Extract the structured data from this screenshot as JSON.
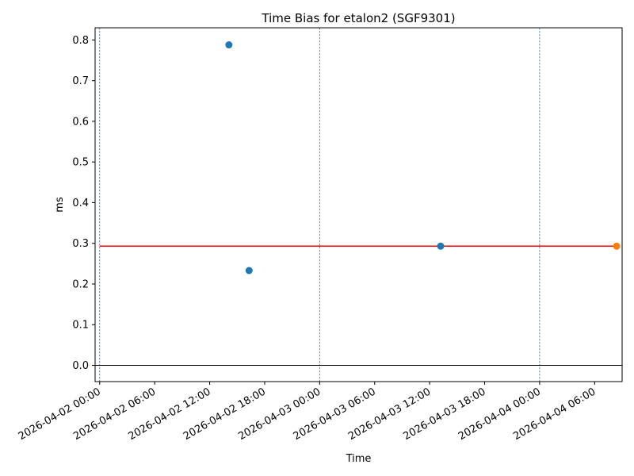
{
  "chart_data": {
    "type": "scatter",
    "title": "Time Bias for etalon2 (SGF9301)",
    "xlabel": "Time",
    "ylabel": "ms",
    "xlim": [
      "2026-04-01T23:30",
      "2026-04-04T09:00"
    ],
    "ylim": [
      -0.04,
      0.83
    ],
    "grid": false,
    "x_ticks": [
      "2026-04-02T00:00",
      "2026-04-02T06:00",
      "2026-04-02T12:00",
      "2026-04-02T18:00",
      "2026-04-03T00:00",
      "2026-04-03T06:00",
      "2026-04-03T12:00",
      "2026-04-03T18:00",
      "2026-04-04T00:00",
      "2026-04-04T06:00"
    ],
    "x_tick_labels": [
      "2026-04-02 00:00",
      "2026-04-02 06:00",
      "2026-04-02 12:00",
      "2026-04-02 18:00",
      "2026-04-03 00:00",
      "2026-04-03 06:00",
      "2026-04-03 12:00",
      "2026-04-03 18:00",
      "2026-04-04 00:00",
      "2026-04-04 06:00"
    ],
    "y_ticks": [
      0.0,
      0.1,
      0.2,
      0.3,
      0.4,
      0.5,
      0.6,
      0.7,
      0.8
    ],
    "y_tick_labels": [
      "0.0",
      "0.1",
      "0.2",
      "0.3",
      "0.4",
      "0.5",
      "0.6",
      "0.7",
      "0.8"
    ],
    "series": [
      {
        "color": "#1f77b4",
        "points": [
          {
            "x": "2026-04-02T14:06",
            "y": 0.788
          },
          {
            "x": "2026-04-02T16:18",
            "y": 0.233
          },
          {
            "x": "2026-04-03T13:12",
            "y": 0.293
          }
        ]
      },
      {
        "color": "#ff7f0e",
        "points": [
          {
            "x": "2026-04-04T08:24",
            "y": 0.293
          }
        ]
      }
    ],
    "hlines": [
      {
        "y": 0.293,
        "color": "#ff0000",
        "x_start": "2026-04-02T00:00",
        "x_end": "2026-04-04T08:24"
      },
      {
        "y": 0.0,
        "color": "#000000"
      }
    ],
    "vlines": [
      {
        "x": "2026-04-02T00:00",
        "color": "#1f77b4",
        "style": "dashed"
      },
      {
        "x": "2026-04-03T00:00",
        "color": "#1f77b4",
        "style": "dashed"
      },
      {
        "x": "2026-04-04T00:00",
        "color": "#1f77b4",
        "style": "dashed"
      }
    ]
  }
}
